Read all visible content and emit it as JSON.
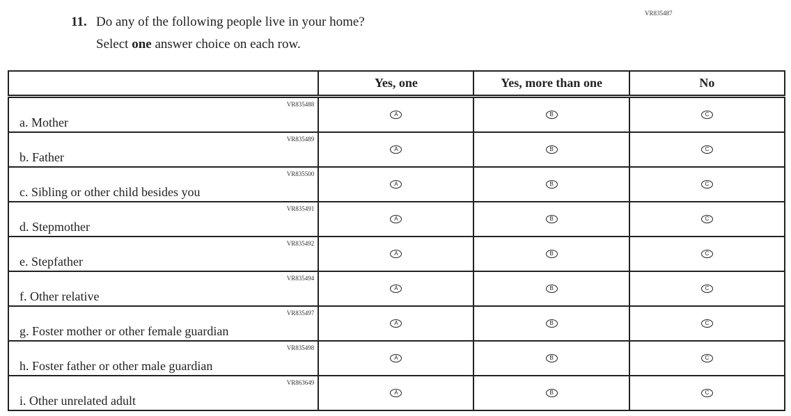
{
  "question": {
    "code": "VR835487",
    "number": "11.",
    "text": "Do any of the following people live in your home?",
    "instruction_pre": "Select ",
    "instruction_bold": "one",
    "instruction_post": " answer choice on each row."
  },
  "columns": [
    "Yes, one",
    "Yes, more than one",
    "No"
  ],
  "bubbles": [
    "A",
    "B",
    "C"
  ],
  "rows": [
    {
      "code": "VR835488",
      "label": "a. Mother"
    },
    {
      "code": "VR835489",
      "label": "b. Father"
    },
    {
      "code": "VR835500",
      "label": "c. Sibling or other child besides you"
    },
    {
      "code": "VR835491",
      "label": "d. Stepmother"
    },
    {
      "code": "VR835492",
      "label": "e. Stepfather"
    },
    {
      "code": "VR835494",
      "label": "f. Other relative"
    },
    {
      "code": "VR835497",
      "label": "g. Foster mother or other female guardian"
    },
    {
      "code": "VR835498",
      "label": "h. Foster father or other male guardian"
    },
    {
      "code": "VR863649",
      "label": "i. Other unrelated adult"
    }
  ]
}
